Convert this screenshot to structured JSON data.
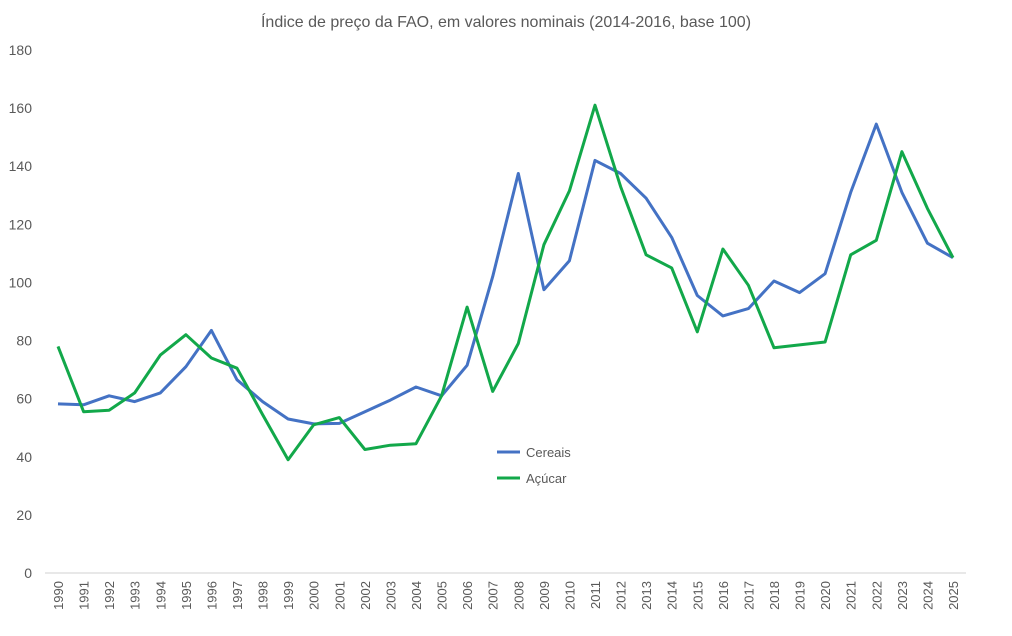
{
  "chart_data": {
    "type": "line",
    "title": "Índice de preço da FAO, em valores nominais (2014-2016, base 100)",
    "xlabel": "",
    "ylabel": "",
    "ylim": [
      0,
      180
    ],
    "yticks": [
      "0",
      "20",
      "40",
      "60",
      "80",
      "100",
      "120",
      "140",
      "160",
      "180"
    ],
    "grid": false,
    "legend_position": "center",
    "categories": [
      "1990",
      "1991",
      "1992",
      "1993",
      "1994",
      "1995",
      "1996",
      "1997",
      "1998",
      "1999",
      "2000",
      "2001",
      "2002",
      "2003",
      "2004",
      "2005",
      "2006",
      "2007",
      "2008",
      "2009",
      "2010",
      "2011",
      "2012",
      "2013",
      "2014",
      "2015",
      "2016",
      "2017",
      "2018",
      "2019",
      "2020",
      "2021",
      "2022",
      "2023",
      "2024",
      "2025"
    ],
    "series": [
      {
        "name": "Cereais",
        "color": "#4472C4",
        "values": [
          58.2,
          57.9,
          61,
          59,
          62,
          71,
          83.5,
          66.5,
          59,
          53,
          51.3,
          51.5,
          55.5,
          59.5,
          64,
          61,
          71.5,
          102,
          137.5,
          97.5,
          107.5,
          142,
          137.5,
          129,
          115.5,
          95.5,
          88.5,
          91,
          100.5,
          96.5,
          103,
          131,
          154.5,
          131,
          113.5,
          108.5
        ]
      },
      {
        "name": "Açúcar",
        "color": "#12A84A",
        "values": [
          78,
          55.5,
          56,
          62,
          75,
          82,
          74,
          70.5,
          54.5,
          39,
          51,
          53.5,
          42.5,
          44,
          44.5,
          61,
          91.5,
          62.5,
          79,
          113,
          131.5,
          161,
          133,
          109.5,
          105,
          83,
          111.5,
          99,
          77.5,
          78.5,
          79.5,
          109.5,
          114.5,
          145,
          125.5,
          108.5
        ]
      }
    ]
  }
}
